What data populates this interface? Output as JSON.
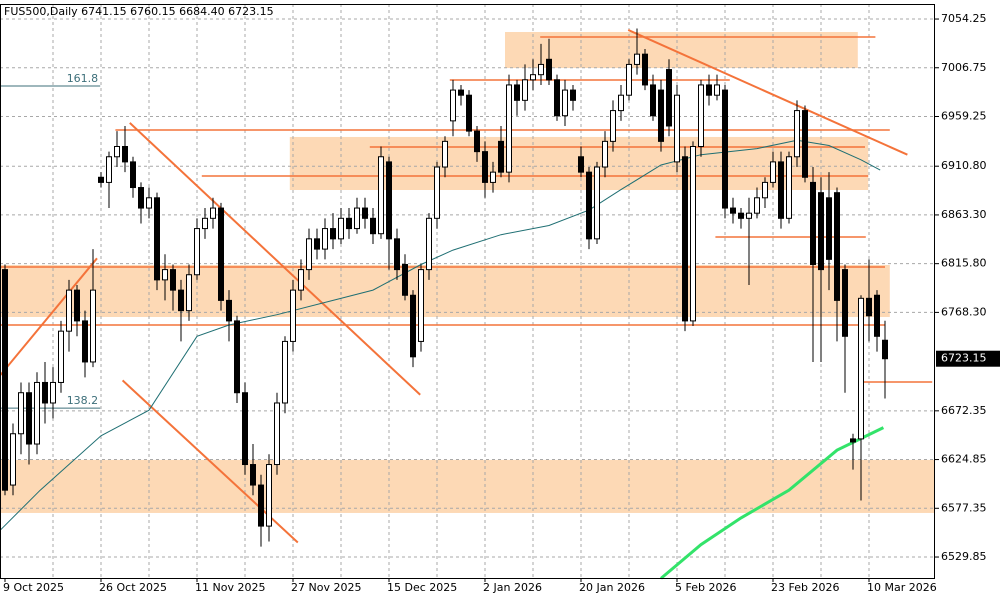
{
  "chart_data": {
    "type": "candlestick",
    "title": "FUS500,Daily  6741.15 6760.15 6684.40 6723.15",
    "categories": [
      "9 Oct 2025",
      null,
      null,
      null,
      null,
      null,
      null,
      null,
      null,
      null,
      null,
      null,
      "26 Oct 2025",
      null,
      null,
      null,
      null,
      null,
      null,
      null,
      null,
      null,
      null,
      null,
      "11 Nov 2025",
      null,
      null,
      null,
      null,
      null,
      null,
      null,
      null,
      null,
      null,
      null,
      "27 Nov 2025",
      null,
      null,
      null,
      null,
      null,
      null,
      null,
      null,
      null,
      null,
      null,
      "15 Dec 2025",
      null,
      null,
      null,
      null,
      null,
      null,
      null,
      null,
      null,
      null,
      null,
      "2 Jan 2026",
      null,
      null,
      null,
      null,
      null,
      null,
      null,
      null,
      null,
      null,
      null,
      "20 Jan 2026",
      null,
      null,
      null,
      null,
      null,
      null,
      null,
      null,
      null,
      null,
      null,
      "5 Feb 2026",
      null,
      null,
      null,
      null,
      null,
      null,
      null,
      null,
      null,
      null,
      null,
      "23 Feb 2026",
      null,
      null,
      null,
      null,
      null,
      null,
      null,
      null,
      null,
      null,
      null,
      "10 Mar 2026",
      null,
      null
    ],
    "open": [
      6810,
      6600,
      6650,
      6690,
      6640,
      6700,
      6680,
      6700,
      6750,
      6790,
      6760,
      6720,
      6900,
      6895,
      6920,
      6930,
      6915,
      6890,
      6870,
      6880,
      6800,
      6810,
      6790,
      6770,
      6805,
      6850,
      6860,
      6870,
      6780,
      6760,
      6690,
      6620,
      6600,
      6560,
      6620,
      6680,
      6740,
      6790,
      6810,
      6840,
      6830,
      6850,
      6840,
      6860,
      6850,
      6870,
      6860,
      6845,
      6915,
      6840,
      6815,
      6785,
      6740,
      6810,
      6860,
      6910,
      6955,
      6985,
      6980,
      6945,
      6925,
      6895,
      6935,
      6905,
      6990,
      6975,
      6995,
      7000,
      7015,
      6995,
      6960,
      6985,
      6920,
      6905,
      6840,
      6910,
      6935,
      6965,
      6980,
      7010,
      7020,
      6990,
      6985,
      7005,
      6915,
      6920,
      6760,
      6930,
      6990,
      6980,
      6985,
      6870,
      6865,
      6860,
      6865,
      6880,
      6895,
      6915,
      6860,
      6920,
      6965,
      6895,
      6885,
      6880,
      6885,
      6810,
      6645,
      6645,
      6782,
      6785,
      6741.15
    ],
    "high": [
      6815,
      6660,
      6700,
      6700,
      6710,
      6720,
      6715,
      6760,
      6800,
      6795,
      6770,
      6830,
      6905,
      6925,
      6945,
      6950,
      6920,
      6895,
      6890,
      6885,
      6825,
      6815,
      6800,
      6815,
      6860,
      6870,
      6880,
      6875,
      6790,
      6765,
      6700,
      6640,
      6610,
      6630,
      6690,
      6745,
      6800,
      6820,
      6850,
      6850,
      6860,
      6865,
      6870,
      6870,
      6880,
      6880,
      6870,
      6930,
      6920,
      6850,
      6825,
      6790,
      6815,
      6865,
      6915,
      6940,
      6995,
      6990,
      6985,
      6950,
      6935,
      6915,
      6950,
      7000,
      6995,
      7010,
      7015,
      7030,
      7035,
      7000,
      6995,
      6990,
      6930,
      6910,
      6915,
      6945,
      6975,
      6990,
      7015,
      7045,
      7025,
      7000,
      6995,
      7015,
      6990,
      6930,
      6935,
      6995,
      7000,
      7000,
      6990,
      6880,
      6870,
      6880,
      6890,
      6900,
      6925,
      6925,
      6925,
      6975,
      6970,
      6910,
      6900,
      6905,
      6890,
      6815,
      6650,
      6785,
      6820,
      6790,
      6760.15
    ],
    "low": [
      6590,
      6590,
      6630,
      6620,
      6630,
      6660,
      6665,
      6690,
      6730,
      6745,
      6705,
      6715,
      6890,
      6870,
      6910,
      6905,
      6880,
      6855,
      6860,
      6790,
      6780,
      6770,
      6740,
      6760,
      6800,
      6840,
      6850,
      6770,
      6740,
      6680,
      6610,
      6590,
      6540,
      6545,
      6610,
      6670,
      6730,
      6780,
      6800,
      6820,
      6820,
      6830,
      6835,
      6840,
      6845,
      6850,
      6835,
      6840,
      6810,
      6800,
      6780,
      6715,
      6730,
      6800,
      6850,
      6900,
      6940,
      6970,
      6940,
      6915,
      6880,
      6885,
      6900,
      6895,
      6960,
      6965,
      6985,
      6990,
      6990,
      6955,
      6950,
      6965,
      6900,
      6830,
      6835,
      6900,
      6925,
      6955,
      6975,
      7000,
      6985,
      6955,
      6925,
      6940,
      6905,
      6750,
      6755,
      6920,
      6970,
      6975,
      6860,
      6855,
      6850,
      6795,
      6860,
      6870,
      6890,
      6850,
      6855,
      6910,
      6895,
      6720,
      6720,
      6790,
      6740,
      6690,
      6615,
      6585,
      6740,
      6730,
      6684.4
    ],
    "close": [
      6595,
      6650,
      6690,
      6640,
      6700,
      6680,
      6700,
      6750,
      6790,
      6760,
      6720,
      6790,
      6895,
      6920,
      6930,
      6915,
      6890,
      6870,
      6880,
      6800,
      6810,
      6790,
      6770,
      6805,
      6850,
      6860,
      6870,
      6780,
      6760,
      6690,
      6620,
      6600,
      6560,
      6620,
      6680,
      6740,
      6790,
      6810,
      6840,
      6830,
      6850,
      6840,
      6860,
      6850,
      6870,
      6860,
      6845,
      6920,
      6840,
      6810,
      6785,
      6725,
      6810,
      6860,
      6910,
      6935,
      6985,
      6980,
      6945,
      6925,
      6895,
      6905,
      6905,
      6990,
      6975,
      6995,
      7000,
      7010,
      6995,
      6960,
      6985,
      6975,
      6905,
      6840,
      6910,
      6935,
      6965,
      6980,
      7010,
      7020,
      6990,
      6960,
      6935,
      6950,
      6980,
      6760,
      6930,
      6990,
      6980,
      6990,
      6870,
      6865,
      6860,
      6865,
      6880,
      6895,
      6915,
      6860,
      6920,
      6965,
      6900,
      6815,
      6810,
      6820,
      6780,
      6745,
      6642,
      6782,
      6765,
      6745,
      6723.15
    ],
    "up_color": "#ffffff",
    "down_color": "#000000",
    "ylim": [
      6509.4,
      7068.9
    ],
    "yticks": [
      7054.25,
      7006.75,
      6959.25,
      {
        "value": 6910.8,
        "label": "6910.80"
      },
      {
        "value": 6863.3,
        "label": "6863.30"
      },
      {
        "value": 6815.8,
        "label": "6815.80"
      },
      {
        "value": 6768.3,
        "label": "6768.30"
      },
      6672.35,
      6624.85,
      6577.35,
      6529.85
    ],
    "grid": true,
    "zone_color": "#fdd9b5",
    "zones": [
      {
        "from": 7041.6,
        "to": 7006.5,
        "start": 62.5,
        "end": 106.6
      },
      {
        "from": 6939.3,
        "to": 6887.6,
        "start": 35.6,
        "end": 107.9
      },
      {
        "from": 6814.5,
        "to": 6763.8,
        "start": -0.6,
        "end": 110.6
      },
      {
        "from": 6624.5,
        "to": 6572.8,
        "start": -0.6,
        "end": 116.2
      }
    ],
    "level_color": "#f4733a",
    "levels": [
      {
        "price": 7036.7,
        "from": 66.9,
        "to": 108.8
      },
      {
        "price": 6994.8,
        "from": 55.6,
        "to": 90.6
      },
      {
        "price": 6946.1,
        "from": 13.8,
        "to": 110.6
      },
      {
        "price": 6929.5,
        "from": 45.6,
        "to": 107.5
      },
      {
        "price": 6901.2,
        "from": 24.6,
        "to": 107.9
      },
      {
        "price": 6841.8,
        "from": 88.8,
        "to": 107.6
      },
      {
        "price": 6812.6,
        "from": -0.6,
        "to": 110
      },
      {
        "price": 6756,
        "from": -0.6,
        "to": 110
      },
      {
        "price": 6700.5,
        "from": 106.9,
        "to": 115.9
      }
    ],
    "trend_lines": [
      {
        "x": [
          15.6,
          51.9
        ],
        "y": [
          6953,
          6688
        ]
      },
      {
        "x": [
          14.7,
          36.6
        ],
        "y": [
          6702,
          6544
        ]
      },
      {
        "x": [
          77.9,
          112.8
        ],
        "y": [
          7043.6,
          6922
        ]
      },
      {
        "x": [
          -0.6,
          11.5
        ],
        "y": [
          6707,
          6821
        ]
      }
    ],
    "fib_color": "#3d6f7a",
    "fib_levels": [
      {
        "label": "161.8",
        "price": 6989,
        "from": -0.6,
        "to": 11.9
      },
      {
        "label": "138.2",
        "price": 6675,
        "from": -0.6,
        "to": 11.9
      }
    ],
    "moving_averages": [
      {
        "color": "#1f6f73",
        "width": 1,
        "x": [
          -0.6,
          4.4,
          12,
          18,
          24,
          28,
          34,
          41,
          46,
          52,
          56,
          62,
          68,
          73,
          77,
          82,
          87,
          94,
          99,
          103,
          107,
          109.4
        ],
        "y": [
          6556,
          6595,
          6648,
          6673,
          6745,
          6756,
          6766,
          6780,
          6790,
          6815,
          6829,
          6844,
          6853,
          6868,
          6888,
          6912,
          6922,
          6928,
          6936,
          6931,
          6917,
          6907
        ]
      },
      {
        "color": "#33e36a",
        "width": 3,
        "x": [
          82,
          87,
          92,
          98,
          104,
          109.8
        ],
        "y": [
          6509,
          6542,
          6568,
          6595,
          6634,
          6656
        ]
      }
    ]
  }
}
